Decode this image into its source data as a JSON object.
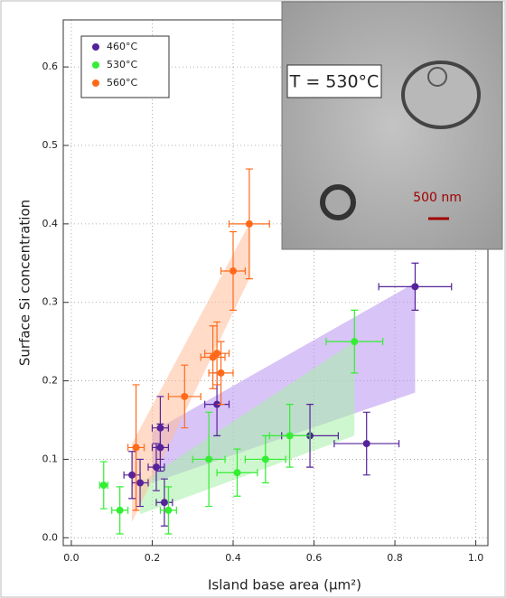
{
  "chart_data": {
    "type": "scatter",
    "x_label": "Island base area (µm²)",
    "y_label": "Surface Si concentration",
    "xlim": [
      -0.02,
      1.03
    ],
    "ylim": [
      -0.01,
      0.66
    ],
    "xticks": [
      {
        "value": 0,
        "label": "0.0"
      },
      {
        "value": 0.2,
        "label": "0.2"
      },
      {
        "value": 0.4,
        "label": "0.4"
      },
      {
        "value": 0.6,
        "label": "0.6"
      },
      {
        "value": 0.8,
        "label": "0.8"
      },
      {
        "value": 1,
        "label": "1.0"
      }
    ],
    "yticks": [
      {
        "value": 0,
        "label": "0.0"
      },
      {
        "value": 0.1,
        "label": "0.1"
      },
      {
        "value": 0.2,
        "label": "0.2"
      },
      {
        "value": 0.3,
        "label": "0.3"
      },
      {
        "value": 0.4,
        "label": "0.4"
      },
      {
        "value": 0.5,
        "label": "0.5"
      },
      {
        "value": 0.6,
        "label": "0.6"
      }
    ],
    "grid": true,
    "legend": "upper left",
    "series": [
      {
        "name": "460°C",
        "color": "#55229a",
        "x": [
          0.15,
          0.17,
          0.21,
          0.22,
          0.22,
          0.23,
          0.36,
          0.59,
          0.73,
          0.85
        ],
        "values": [
          0.08,
          0.07,
          0.09,
          0.115,
          0.14,
          0.045,
          0.17,
          0.13,
          0.12,
          0.32
        ],
        "xerr": [
          0.02,
          0.02,
          0.02,
          0.02,
          0.02,
          0.02,
          0.03,
          0.07,
          0.08,
          0.09
        ],
        "yerr": [
          0.03,
          0.03,
          0.03,
          0.03,
          0.04,
          0.03,
          0.04,
          0.04,
          0.04,
          0.03
        ]
      },
      {
        "name": "530°C",
        "color": "#33ee33",
        "x": [
          0.08,
          0.12,
          0.24,
          0.34,
          0.41,
          0.48,
          0.54,
          0.7
        ],
        "values": [
          0.067,
          0.035,
          0.035,
          0.1,
          0.083,
          0.1,
          0.13,
          0.25
        ],
        "xerr": [
          0.01,
          0.02,
          0.02,
          0.04,
          0.05,
          0.05,
          0.05,
          0.07
        ],
        "yerr": [
          0.03,
          0.03,
          0.03,
          0.06,
          0.03,
          0.03,
          0.04,
          0.04
        ]
      },
      {
        "name": "560°C",
        "color": "#ff6a1a",
        "x": [
          0.16,
          0.28,
          0.35,
          0.36,
          0.37,
          0.4,
          0.44
        ],
        "values": [
          0.115,
          0.18,
          0.23,
          0.235,
          0.21,
          0.34,
          0.4
        ],
        "xerr": [
          0.02,
          0.04,
          0.03,
          0.03,
          0.03,
          0.03,
          0.05
        ],
        "yerr": [
          0.08,
          0.04,
          0.04,
          0.04,
          0.04,
          0.05,
          0.07
        ]
      }
    ],
    "bands": [
      {
        "color": "#b894f0",
        "x": [
          0.2,
          0.85
        ],
        "lower": [
          0.07,
          0.185
        ],
        "upper": [
          0.135,
          0.325
        ]
      },
      {
        "color": "#a8f0a8",
        "x": [
          0.17,
          0.7
        ],
        "lower": [
          0.03,
          0.13
        ],
        "upper": [
          0.07,
          0.25
        ]
      },
      {
        "color": "#ffbd9a",
        "x": [
          0.15,
          0.44
        ],
        "lower": [
          0.02,
          0.33
        ],
        "upper": [
          0.12,
          0.4
        ]
      }
    ],
    "inset_label": "T = 530°C",
    "inset_scale": "500 nm"
  }
}
